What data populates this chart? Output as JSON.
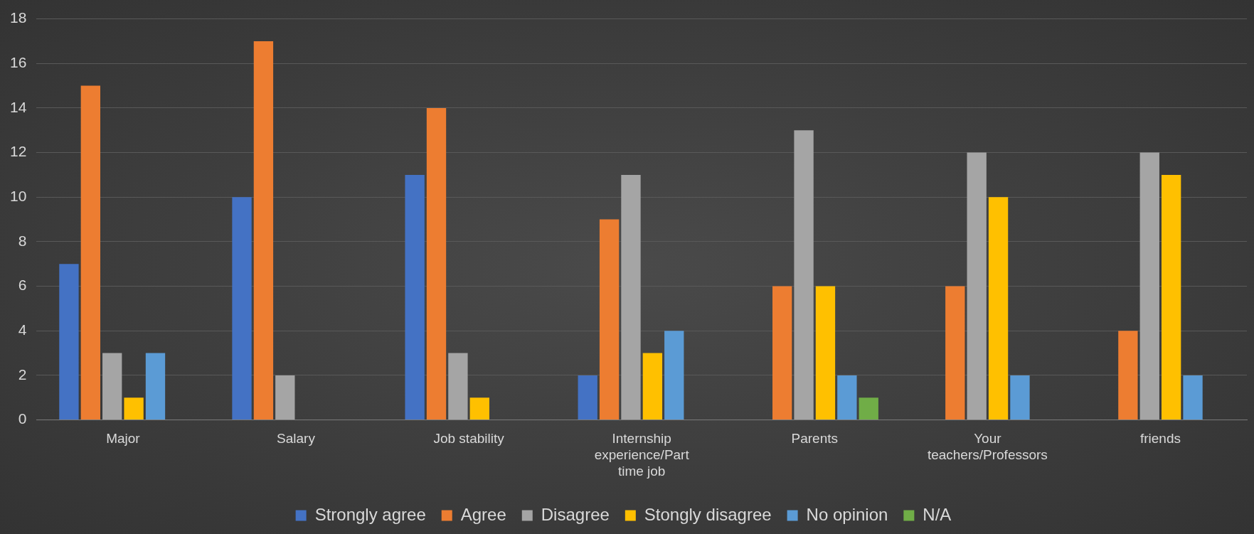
{
  "chart_data": {
    "type": "bar",
    "categories": [
      "Major",
      "Salary",
      "Job stability",
      "Internship experience/Part time job",
      "Parents",
      "Your teachers/Professors",
      "friends"
    ],
    "series": [
      {
        "name": "Strongly agree",
        "color": "#4472c4",
        "values": [
          7,
          10,
          11,
          2,
          0,
          0,
          0
        ]
      },
      {
        "name": "Agree",
        "color": "#ed7d31",
        "values": [
          15,
          17,
          14,
          9,
          6,
          6,
          4
        ]
      },
      {
        "name": "Disagree",
        "color": "#a5a5a5",
        "values": [
          3,
          2,
          3,
          11,
          13,
          12,
          12
        ]
      },
      {
        "name": "Stongly disagree",
        "color": "#ffc000",
        "values": [
          1,
          0,
          1,
          3,
          6,
          10,
          11
        ]
      },
      {
        "name": "No opinion",
        "color": "#5b9bd5",
        "values": [
          3,
          0,
          0,
          4,
          2,
          2,
          2
        ]
      },
      {
        "name": "N/A",
        "color": "#70ad47",
        "values": [
          0,
          0,
          0,
          0,
          1,
          0,
          0
        ]
      }
    ],
    "ylim": [
      0,
      18
    ],
    "yticks": [
      0,
      2,
      4,
      6,
      8,
      10,
      12,
      14,
      16,
      18
    ],
    "grid": "y",
    "legend": "bottom"
  }
}
